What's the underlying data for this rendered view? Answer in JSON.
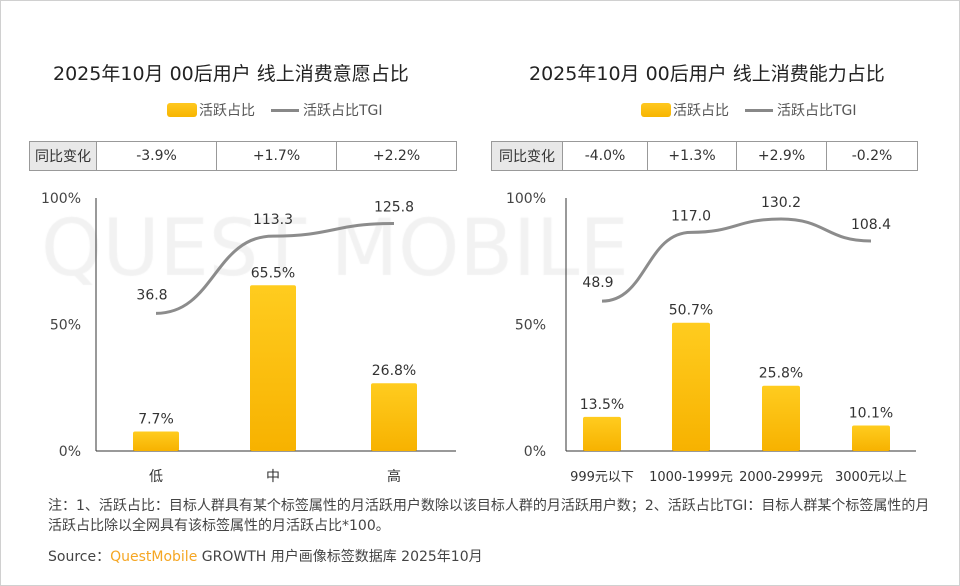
{
  "watermark": "QUEST MOBILE",
  "colors": {
    "bar": "#FFC107",
    "line": "#8C8C8C",
    "brand": "#F5A623"
  },
  "legend": {
    "bar": "活跃占比",
    "line": "活跃占比TGI"
  },
  "chart_data": [
    {
      "type": "bar",
      "title": "2025年10月 00后用户 线上消费意愿占比",
      "categories": [
        "低",
        "中",
        "高"
      ],
      "series": [
        {
          "name": "活跃占比",
          "values": [
            7.7,
            65.5,
            26.8
          ],
          "labels": [
            "7.7%",
            "65.5%",
            "26.8%"
          ]
        },
        {
          "name": "活跃占比TGI",
          "type": "line",
          "values": [
            36.8,
            113.3,
            125.8
          ]
        }
      ],
      "yticks": [
        "0%",
        "50%",
        "100%"
      ],
      "ylim": [
        0,
        100
      ],
      "yoy_label": "同比变化",
      "yoy": [
        "-3.9%",
        "+1.7%",
        "+2.2%"
      ]
    },
    {
      "type": "bar",
      "title": "2025年10月 00后用户 线上消费能力占比",
      "categories": [
        "999元以下",
        "1000-1999元",
        "2000-2999元",
        "3000元以上"
      ],
      "series": [
        {
          "name": "活跃占比",
          "values": [
            13.5,
            50.7,
            25.8,
            10.1
          ],
          "labels": [
            "13.5%",
            "50.7%",
            "25.8%",
            "10.1%"
          ]
        },
        {
          "name": "活跃占比TGI",
          "type": "line",
          "values": [
            48.9,
            117.0,
            130.2,
            108.4
          ]
        }
      ],
      "yticks": [
        "0%",
        "50%",
        "100%"
      ],
      "ylim": [
        0,
        100
      ],
      "yoy_label": "同比变化",
      "yoy": [
        "-4.0%",
        "+1.3%",
        "+2.9%",
        "-0.2%"
      ]
    }
  ],
  "note": "注：1、活跃占比：目标人群具有某个标签属性的月活跃用户数除以该目标人群的月活跃用户数；2、活跃占比TGI：目标人群某个标签属性的月活跃占比除以全网具有该标签属性的月活跃占比*100。",
  "source": {
    "prefix": "Source：",
    "brand": "QuestMobile",
    "rest": " GROWTH 用户画像标签数据库 2025年10月"
  }
}
